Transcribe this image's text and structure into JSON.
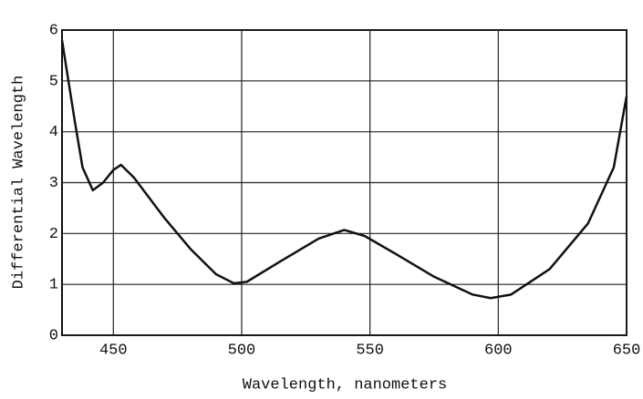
{
  "chart_data": {
    "type": "line",
    "xlabel": "Wavelength, nanometers",
    "ylabel": "Differential Wavelength",
    "x": [
      430,
      435,
      438,
      442,
      446,
      450,
      453,
      458,
      470,
      480,
      490,
      497,
      502,
      515,
      530,
      540,
      548,
      560,
      575,
      590,
      597,
      605,
      620,
      635,
      645,
      650
    ],
    "series": [
      {
        "name": "Differential Wavelength",
        "color": "#111111",
        "values": [
          5.8,
          4.2,
          3.3,
          2.85,
          3.0,
          3.25,
          3.35,
          3.1,
          2.3,
          1.7,
          1.2,
          1.02,
          1.05,
          1.45,
          1.9,
          2.07,
          1.95,
          1.6,
          1.15,
          0.8,
          0.73,
          0.8,
          1.3,
          2.2,
          3.3,
          4.7
        ]
      }
    ],
    "xlim": [
      430,
      650
    ],
    "xticks": [
      450,
      500,
      550,
      600,
      650
    ],
    "ylim": [
      0,
      6
    ],
    "yticks": [
      0,
      1,
      2,
      3,
      4,
      5,
      6
    ],
    "grid": true
  }
}
